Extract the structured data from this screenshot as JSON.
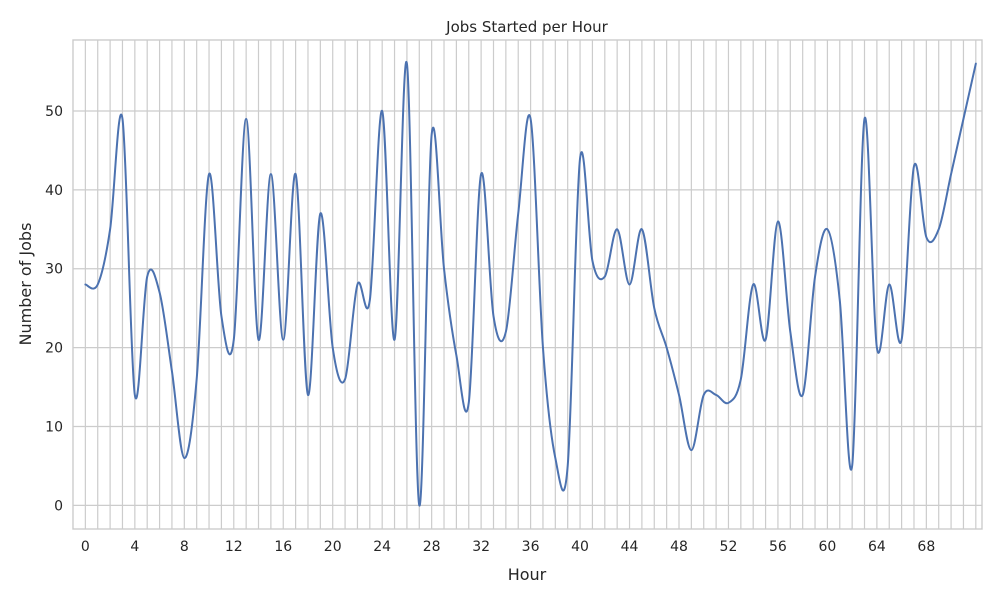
{
  "chart_data": {
    "type": "line",
    "title": "Jobs Started per Hour",
    "xlabel": "Hour",
    "ylabel": "Number of Jobs",
    "xlim": [
      -1,
      72.5
    ],
    "ylim": [
      -3,
      59
    ],
    "x_ticks": [
      0,
      4,
      8,
      12,
      16,
      20,
      24,
      28,
      32,
      36,
      40,
      44,
      48,
      52,
      56,
      60,
      64,
      68
    ],
    "y_ticks": [
      0,
      10,
      20,
      30,
      40,
      50
    ],
    "grid": true,
    "vertical_gridlines_every_hour": true,
    "series": [
      {
        "color": "#4c72b0",
        "x": [
          0,
          1,
          2,
          3,
          4,
          5,
          6,
          7,
          8,
          9,
          10,
          11,
          12,
          13,
          14,
          15,
          16,
          17,
          18,
          19,
          20,
          21,
          22,
          23,
          24,
          25,
          26,
          27,
          28,
          29,
          30,
          31,
          32,
          33,
          34,
          35,
          36,
          37,
          38,
          39,
          40,
          41,
          42,
          43,
          44,
          45,
          46,
          47,
          48,
          49,
          50,
          51,
          52,
          53,
          54,
          55,
          56,
          57,
          58,
          59,
          60,
          61,
          62,
          63,
          64,
          65,
          66,
          67,
          68,
          69,
          70,
          71,
          72
        ],
        "values": [
          28,
          28,
          35,
          49,
          14,
          29,
          27,
          17,
          6,
          16,
          42,
          24,
          21,
          49,
          21,
          42,
          21,
          42,
          14,
          37,
          20,
          16,
          28,
          26,
          50,
          21,
          56,
          0,
          47,
          30,
          19,
          13,
          42,
          24,
          22,
          37,
          49,
          20,
          6,
          5,
          44,
          31,
          29,
          35,
          28,
          35,
          25,
          20,
          14,
          7,
          14,
          14,
          13,
          16,
          28,
          21,
          36,
          22,
          14,
          29,
          35,
          26,
          5,
          49,
          20,
          28,
          21,
          43,
          34,
          35,
          42,
          49,
          56
        ]
      }
    ]
  }
}
